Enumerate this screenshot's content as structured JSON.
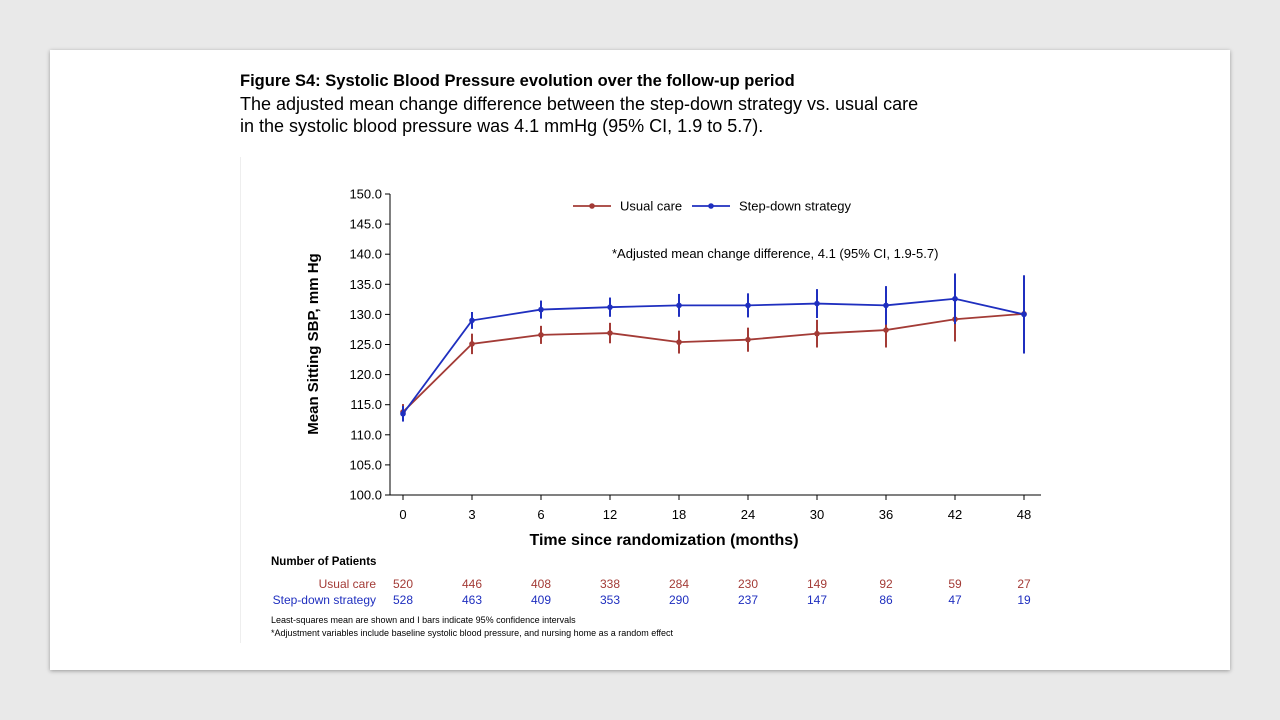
{
  "figure": {
    "title": "Figure S4: Systolic Blood Pressure evolution over the follow-up period",
    "description_line1": "The adjusted mean change difference between the step-down strategy vs. usual care",
    "description_line2": "in the systolic blood pressure was 4.1 mmHg (95% CI, 1.9 to 5.7)."
  },
  "chart_data": {
    "type": "line",
    "title": "",
    "xlabel": "Time since randomization (months)",
    "ylabel": "Mean Sitting SBP, mm Hg",
    "x": [
      0,
      3,
      6,
      12,
      18,
      24,
      30,
      36,
      42,
      48
    ],
    "x_tick_labels": [
      "0",
      "3",
      "6",
      "12",
      "18",
      "24",
      "30",
      "36",
      "42",
      "48"
    ],
    "ylim": [
      100,
      150
    ],
    "y_ticks": [
      "100.0",
      "105.0",
      "110.0",
      "115.0",
      "120.0",
      "125.0",
      "130.0",
      "135.0",
      "140.0",
      "145.0",
      "150.0"
    ],
    "grid": false,
    "legend_position": "top-center",
    "annotation": "*Adjusted mean change difference, 4.1 (95% CI, 1.9-5.7)",
    "series": [
      {
        "name": "Usual care",
        "color": "#a33b36",
        "values": [
          113.8,
          125.1,
          126.6,
          126.9,
          125.4,
          125.8,
          126.8,
          127.4,
          129.2,
          130.1
        ],
        "ci_lower": [
          112.5,
          123.4,
          125.1,
          125.2,
          123.5,
          123.8,
          124.5,
          124.5,
          125.5,
          124.5
        ],
        "ci_upper": [
          115.1,
          126.8,
          128.1,
          128.6,
          127.3,
          127.8,
          129.1,
          130.3,
          132.9,
          135.7
        ]
      },
      {
        "name": "Step-down strategy",
        "color": "#1f2fbf",
        "values": [
          113.5,
          129.0,
          130.8,
          131.2,
          131.5,
          131.5,
          131.8,
          131.5,
          132.6,
          130.0
        ],
        "ci_lower": [
          112.2,
          127.6,
          129.3,
          129.6,
          129.6,
          129.5,
          129.4,
          128.3,
          128.4,
          123.5
        ],
        "ci_upper": [
          114.8,
          130.4,
          132.3,
          132.8,
          133.4,
          133.5,
          134.2,
          134.7,
          136.8,
          136.5
        ]
      }
    ]
  },
  "patients": {
    "title": "Number of Patients",
    "rows": [
      {
        "label": "Usual care",
        "color": "#a33b36",
        "counts": [
          "520",
          "446",
          "408",
          "338",
          "284",
          "230",
          "149",
          "92",
          "59",
          "27"
        ]
      },
      {
        "label": "Step-down strategy",
        "color": "#1f2fbf",
        "counts": [
          "528",
          "463",
          "409",
          "353",
          "290",
          "237",
          "147",
          "86",
          "47",
          "19"
        ]
      }
    ]
  },
  "footnotes": {
    "line1": "Least-squares mean are shown and I bars indicate 95% confidence intervals",
    "line2": "*Adjustment variables include baseline systolic blood pressure, and nursing home as a random effect"
  }
}
